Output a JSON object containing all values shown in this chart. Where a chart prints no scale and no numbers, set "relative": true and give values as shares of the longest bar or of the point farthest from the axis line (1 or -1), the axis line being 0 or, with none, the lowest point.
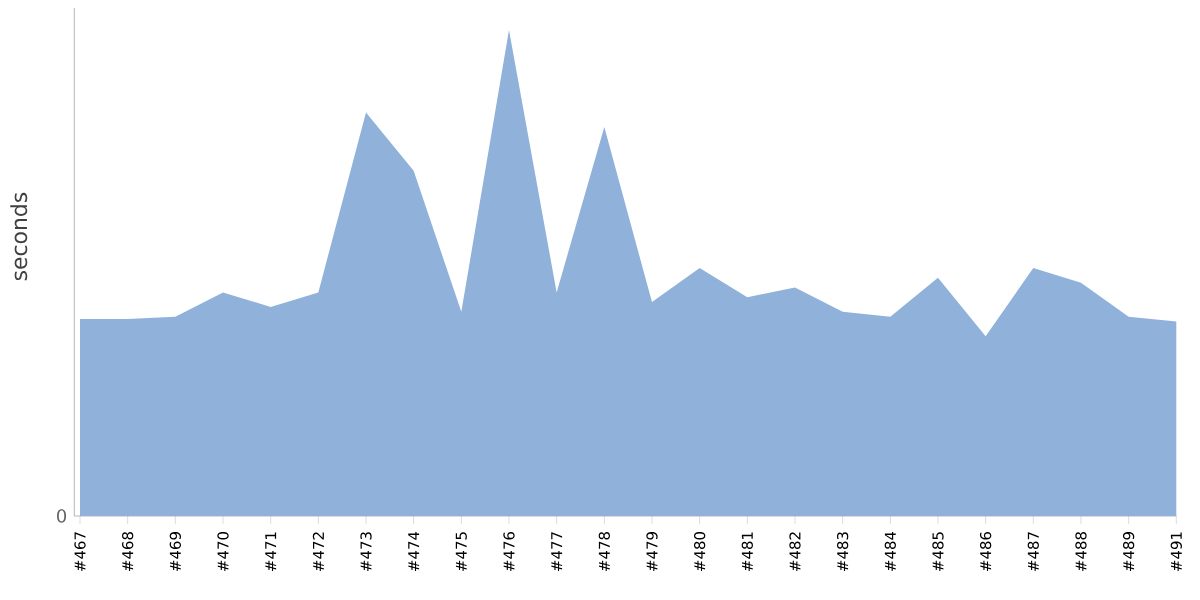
{
  "chart_data": {
    "type": "area",
    "ylabel": "seconds",
    "relative": true,
    "annotations": [
      "0"
    ],
    "color": "#8fb1da",
    "categories": [
      "#467",
      "#468",
      "#469",
      "#470",
      "#471",
      "#472",
      "#473",
      "#474",
      "#475",
      "#476",
      "#477",
      "#478",
      "#479",
      "#480",
      "#481",
      "#482",
      "#483",
      "#484",
      "#485",
      "#486",
      "#487",
      "#488",
      "#489",
      "#491"
    ],
    "values": [
      0.405,
      0.405,
      0.41,
      0.46,
      0.43,
      0.46,
      0.83,
      0.71,
      0.42,
      1,
      0.46,
      0.8,
      0.44,
      0.51,
      0.45,
      0.47,
      0.42,
      0.41,
      0.49,
      0.37,
      0.51,
      0.48,
      0.41,
      0.4
    ]
  }
}
